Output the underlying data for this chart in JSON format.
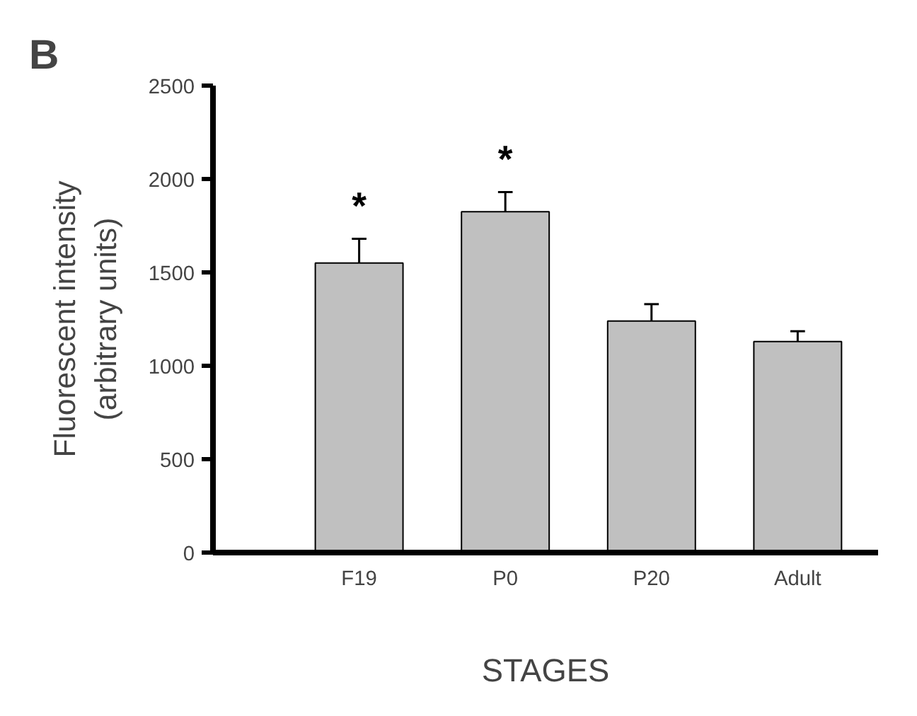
{
  "chart_data": {
    "type": "bar",
    "title": "B",
    "xlabel": "STAGES",
    "ylabel": "Fluorescent intensity\n(arbitrary units)",
    "categories": [
      "F19",
      "P0",
      "P20",
      "Adult"
    ],
    "values": [
      1550,
      1825,
      1240,
      1130
    ],
    "errors": [
      [
        1550,
        1680
      ],
      [
        1825,
        1930
      ],
      [
        1240,
        1330
      ],
      [
        1130,
        1185
      ]
    ],
    "color": "#c0c0c0",
    "ylim": [
      0,
      2500
    ],
    "yticks": [
      0,
      500,
      1000,
      1500,
      2000,
      2500
    ],
    "grid": false,
    "annotations": [
      "*",
      "*"
    ]
  }
}
